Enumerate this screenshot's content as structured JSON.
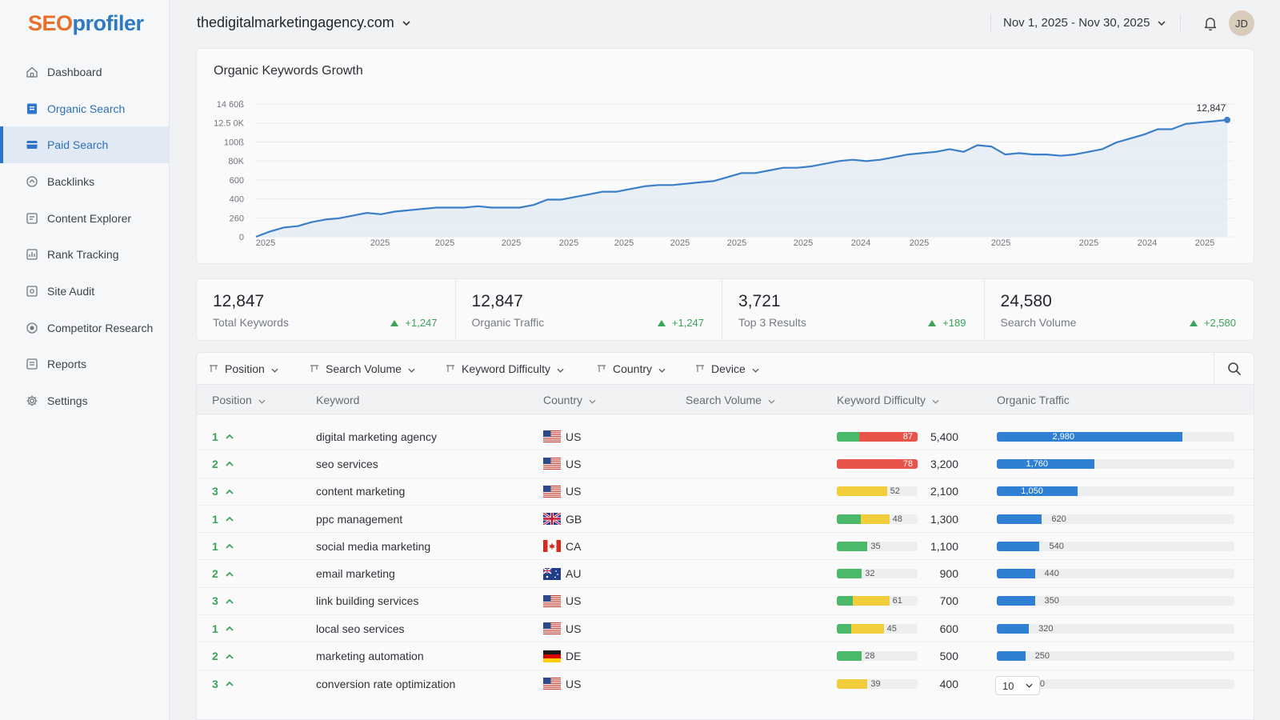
{
  "brand": {
    "seo": "SEO",
    "rest": "profiler"
  },
  "sidebar": {
    "items": [
      {
        "label": "Dashboard",
        "icon": "home-icon"
      },
      {
        "label": "Organic Search",
        "icon": "organic-search-icon"
      },
      {
        "label": "Paid Search",
        "icon": "paid-search-icon"
      },
      {
        "label": "Backlinks",
        "icon": "link-icon"
      },
      {
        "label": "Content Explorer",
        "icon": "content-icon"
      },
      {
        "label": "Rank Tracking",
        "icon": "rank-icon"
      },
      {
        "label": "Site Audit",
        "icon": "audit-icon"
      },
      {
        "label": "Competitor Research",
        "icon": "competitor-icon"
      },
      {
        "label": "Reports",
        "icon": "reports-icon"
      },
      {
        "label": "Settings",
        "icon": "gear-icon"
      }
    ],
    "selected": "Paid Search",
    "highlighted": "Organic Search"
  },
  "header": {
    "domain": "thedigitalmarketingagency.com",
    "date_range": "Nov 1, 2025 - Nov 30, 2025",
    "avatar_initials": "JD"
  },
  "chart_data": {
    "type": "area",
    "title": "Organic Keywords Growth",
    "y_tick_labels": [
      "0",
      "260",
      "400",
      "600",
      "80K",
      "100ß",
      "12.5 0K",
      "14 60ß"
    ],
    "x_tick_labels": [
      "2025",
      "2025",
      "2025",
      "2025",
      "2025",
      "2025",
      "2025",
      "2025",
      "2025",
      "2024",
      "2025",
      "2025",
      "2025",
      "2024",
      "2025"
    ],
    "series": [
      {
        "values": [
          0,
          4,
          7,
          8,
          11,
          13,
          14,
          16,
          18,
          17,
          19,
          20,
          21,
          22,
          22,
          22,
          23,
          22,
          22,
          22,
          24,
          28,
          28,
          30,
          32,
          34,
          34,
          36,
          38,
          39,
          39,
          40,
          41,
          42,
          45,
          48,
          48,
          50,
          52,
          52,
          53,
          55,
          57,
          58,
          57,
          58,
          60,
          62,
          63,
          64,
          66,
          64,
          69,
          68,
          62,
          63,
          62,
          62,
          61,
          62,
          64,
          66,
          71,
          74,
          77,
          81,
          81,
          85,
          86,
          87,
          88
        ]
      }
    ],
    "end_label": "12,847",
    "grid": true,
    "color": "#3a7fc7"
  },
  "stats": [
    {
      "value": "12,847",
      "label": "Total Keywords",
      "change": "+1,247"
    },
    {
      "value": "12,847",
      "label": "Organic Traffic",
      "change": "+1,247"
    },
    {
      "value": "3,721",
      "label": "Top 3 Results",
      "change": "+189"
    },
    {
      "value": "24,580",
      "label": "Search Volume",
      "change": "+2,580"
    }
  ],
  "filters": [
    "Position",
    "Search Volume",
    "Keyword Difficulty",
    "Country",
    "Device"
  ],
  "columns": [
    "Position",
    "Keyword",
    "Country",
    "Search Volume",
    "Keyword Difficulty",
    "Organic Traffic"
  ],
  "rows": [
    {
      "position": "1",
      "keyword": "digital marketing agency",
      "country": "US",
      "flag": "us",
      "volume": "5,400",
      "difficulty": "87",
      "difficulty_segments": [
        {
          "color": "#4cb96a",
          "frac": 0.28
        },
        {
          "color": "#e8534a",
          "frac": 0.72
        }
      ],
      "traffic": "2,980",
      "traffic_frac": 0.78,
      "traffic_label_inside": true
    },
    {
      "position": "2",
      "keyword": "seo services",
      "country": "US",
      "flag": "us",
      "volume": "3,200",
      "difficulty": "78",
      "difficulty_segments": [
        {
          "color": "#e8534a",
          "frac": 1.0
        }
      ],
      "traffic": "1,760",
      "traffic_frac": 0.41,
      "traffic_label_inside": true
    },
    {
      "position": "3",
      "keyword": "content marketing",
      "country": "US",
      "flag": "us",
      "volume": "2,100",
      "difficulty": "52",
      "difficulty_segments": [
        {
          "color": "#f2cd3c",
          "frac": 0.62
        }
      ],
      "traffic": "1,050",
      "traffic_frac": 0.34,
      "traffic_label_inside": true
    },
    {
      "position": "1",
      "keyword": "ppc management",
      "country": "GB",
      "flag": "gb",
      "volume": "1,300",
      "difficulty": "48",
      "difficulty_segments": [
        {
          "color": "#4cb96a",
          "frac": 0.3
        },
        {
          "color": "#f2cd3c",
          "frac": 0.35
        }
      ],
      "traffic": "620",
      "traffic_frac": 0.19,
      "traffic_label_inside": false
    },
    {
      "position": "1",
      "keyword": "social media marketing",
      "country": "CA",
      "flag": "ca",
      "volume": "1,100",
      "difficulty": "35",
      "difficulty_segments": [
        {
          "color": "#4cb96a",
          "frac": 0.38
        }
      ],
      "traffic": "540",
      "traffic_frac": 0.18,
      "traffic_label_inside": false
    },
    {
      "position": "2",
      "keyword": "email marketing",
      "country": "AU",
      "flag": "au",
      "volume": "900",
      "difficulty": "32",
      "difficulty_segments": [
        {
          "color": "#4cb96a",
          "frac": 0.31
        }
      ],
      "traffic": "440",
      "traffic_frac": 0.16,
      "traffic_label_inside": false
    },
    {
      "position": "3",
      "keyword": "link building services",
      "country": "US",
      "flag": "us",
      "volume": "700",
      "difficulty": "61",
      "difficulty_segments": [
        {
          "color": "#4cb96a",
          "frac": 0.2
        },
        {
          "color": "#f2cd3c",
          "frac": 0.45
        }
      ],
      "traffic": "350",
      "traffic_frac": 0.16,
      "traffic_label_inside": false
    },
    {
      "position": "1",
      "keyword": "local seo services",
      "country": "US",
      "flag": "us",
      "volume": "600",
      "difficulty": "45",
      "difficulty_segments": [
        {
          "color": "#4cb96a",
          "frac": 0.18
        },
        {
          "color": "#f2cd3c",
          "frac": 0.4
        }
      ],
      "traffic": "320",
      "traffic_frac": 0.135,
      "traffic_label_inside": false
    },
    {
      "position": "2",
      "keyword": "marketing automation",
      "country": "DE",
      "flag": "de",
      "volume": "500",
      "difficulty": "28",
      "difficulty_segments": [
        {
          "color": "#4cb96a",
          "frac": 0.31
        }
      ],
      "traffic": "250",
      "traffic_frac": 0.12,
      "traffic_label_inside": false
    },
    {
      "position": "3",
      "keyword": "conversion rate optimization",
      "country": "US",
      "flag": "us",
      "volume": "400",
      "difficulty": "39",
      "difficulty_segments": [
        {
          "color": "#f2cd3c",
          "frac": 0.38
        }
      ],
      "traffic": "200",
      "traffic_frac": 0.1,
      "traffic_label_inside": false
    }
  ],
  "pager": {
    "page_size": "10"
  },
  "colors": {
    "accent": "#2f74c8",
    "positive": "#3aa35a",
    "brand_orange": "#e8702a"
  }
}
